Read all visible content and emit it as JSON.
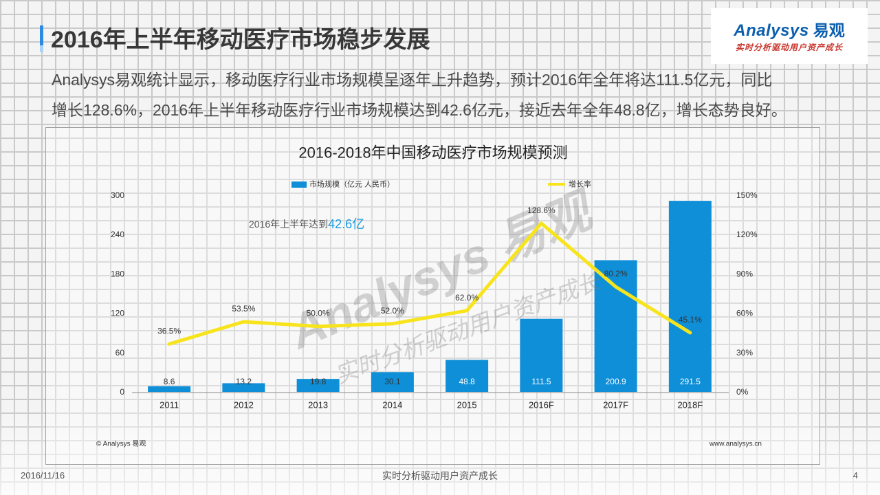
{
  "slide": {
    "title": "2016年上半年移动医疗市场稳步发展",
    "summary": [
      "Analysys易观统计显示，移动医疗行业市场规模呈逐年上升趋势，预计2016年全年将达111.5亿元，同比",
      "增长128.6%，2016年上半年移动医疗行业市场规模达到42.6亿元，接近去年全年48.8亿，增长态势良好。"
    ]
  },
  "logo": {
    "name_latin": "Analysys",
    "name_cn": "易观",
    "tagline": "实时分析驱动用户资产成长"
  },
  "colors": {
    "title_accent": "#2a8ae4",
    "bar": "#0e8fd8",
    "line": "#f7e41d",
    "highlight": "#1a9ce0",
    "logo_blue": "#0b5fae",
    "logo_red": "#c8372d"
  },
  "chart_data": {
    "type": "bar",
    "title": "2016-2018年中国移动医疗市场规模预测",
    "categories": [
      "2011",
      "2012",
      "2013",
      "2014",
      "2015",
      "2016F",
      "2017F",
      "2018F"
    ],
    "series": [
      {
        "name": "市场规模（亿元 人民币）",
        "type": "bar",
        "axis": "left",
        "values": [
          8.6,
          13.2,
          19.8,
          30.1,
          48.8,
          111.5,
          200.9,
          291.5
        ]
      },
      {
        "name": "增长率",
        "type": "line",
        "axis": "right",
        "unit": "%",
        "values": [
          36.5,
          53.5,
          50.0,
          52.0,
          62.0,
          128.6,
          80.2,
          45.1
        ]
      }
    ],
    "ylim": [
      0,
      300
    ],
    "yticks": [
      0,
      60,
      120,
      180,
      240,
      300
    ],
    "y2lim": [
      0,
      150
    ],
    "y2ticks": [
      0,
      30,
      60,
      90,
      120,
      150
    ],
    "y2_unit": "%",
    "data_labels": true,
    "legend": "top-center",
    "grid": false,
    "annotation": {
      "text": "2016年上半年达到",
      "highlight": "42.6亿"
    },
    "source": "© Analysys 易观",
    "website": "www.analysys.cn"
  },
  "watermark": {
    "name": "Analysys 易观",
    "tagline": "实时分析驱动用户资产成长"
  },
  "footer": {
    "date": "2016/11/16",
    "tagline": "实时分析驱动用户资产成长",
    "page": "4"
  }
}
